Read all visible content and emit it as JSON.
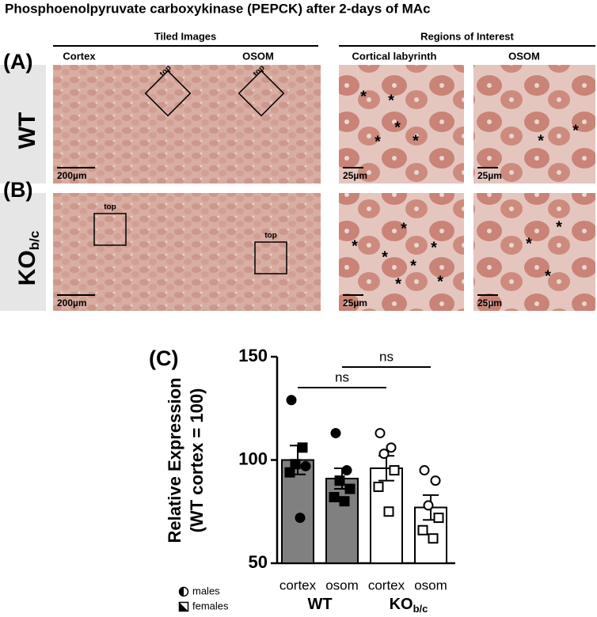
{
  "title": "Phosphoenolpyruvate carboxykinase (PEPCK) after 2-days of MAc",
  "figure": {
    "tiled_header": "Tiled Images",
    "roi_header": "Regions of Interest",
    "columns": [
      "Cortex",
      "OSOM",
      "Cortical labyrinth",
      "OSOM"
    ],
    "rows": [
      {
        "panel": "(A)",
        "genotype": "WT"
      },
      {
        "panel": "(B)",
        "genotype": "KO",
        "genotype_sub": "b/c"
      }
    ],
    "box_label": "top",
    "scale_tiled": "200µm",
    "scale_roi": "25µm",
    "asterisk": "*"
  },
  "chart_data": {
    "type": "bar",
    "panel": "(C)",
    "ylabel": [
      "Relative Expression",
      "(WT cortex = 100)"
    ],
    "categories": [
      "cortex",
      "osom",
      "cortex",
      "osom"
    ],
    "groups": [
      {
        "label": "WT"
      },
      {
        "label": "KO",
        "sub": "b/c"
      }
    ],
    "values": [
      100,
      91,
      96,
      77
    ],
    "errors": [
      7,
      5,
      6,
      6
    ],
    "colors": [
      "#808080",
      "#808080",
      "#ffffff",
      "#ffffff"
    ],
    "points": [
      [
        129,
        106,
        98,
        97,
        94,
        72
      ],
      [
        113,
        95,
        90,
        86,
        82,
        80
      ],
      [
        113,
        106,
        103,
        95,
        87,
        75
      ],
      [
        95,
        90,
        78,
        72,
        66,
        62
      ]
    ],
    "point_shapes": [
      [
        "circle",
        "square",
        "square",
        "circle",
        "square",
        "circle"
      ],
      [
        "circle",
        "circle",
        "square",
        "square",
        "square",
        "square"
      ],
      [
        "circle",
        "circle",
        "circle",
        "square",
        "square",
        "square"
      ],
      [
        "circle",
        "circle",
        "circle",
        "square",
        "square",
        "square"
      ]
    ],
    "point_filled": [
      true,
      true,
      false,
      false
    ],
    "comparisons": [
      {
        "label": "ns",
        "from": 0,
        "to": 2
      },
      {
        "label": "ns",
        "from": 1,
        "to": 3
      }
    ],
    "legend": [
      {
        "label": "males",
        "shape": "circle"
      },
      {
        "label": "females",
        "shape": "square"
      }
    ],
    "ylim": [
      50,
      150
    ],
    "yticks": [
      50,
      100,
      150
    ]
  }
}
